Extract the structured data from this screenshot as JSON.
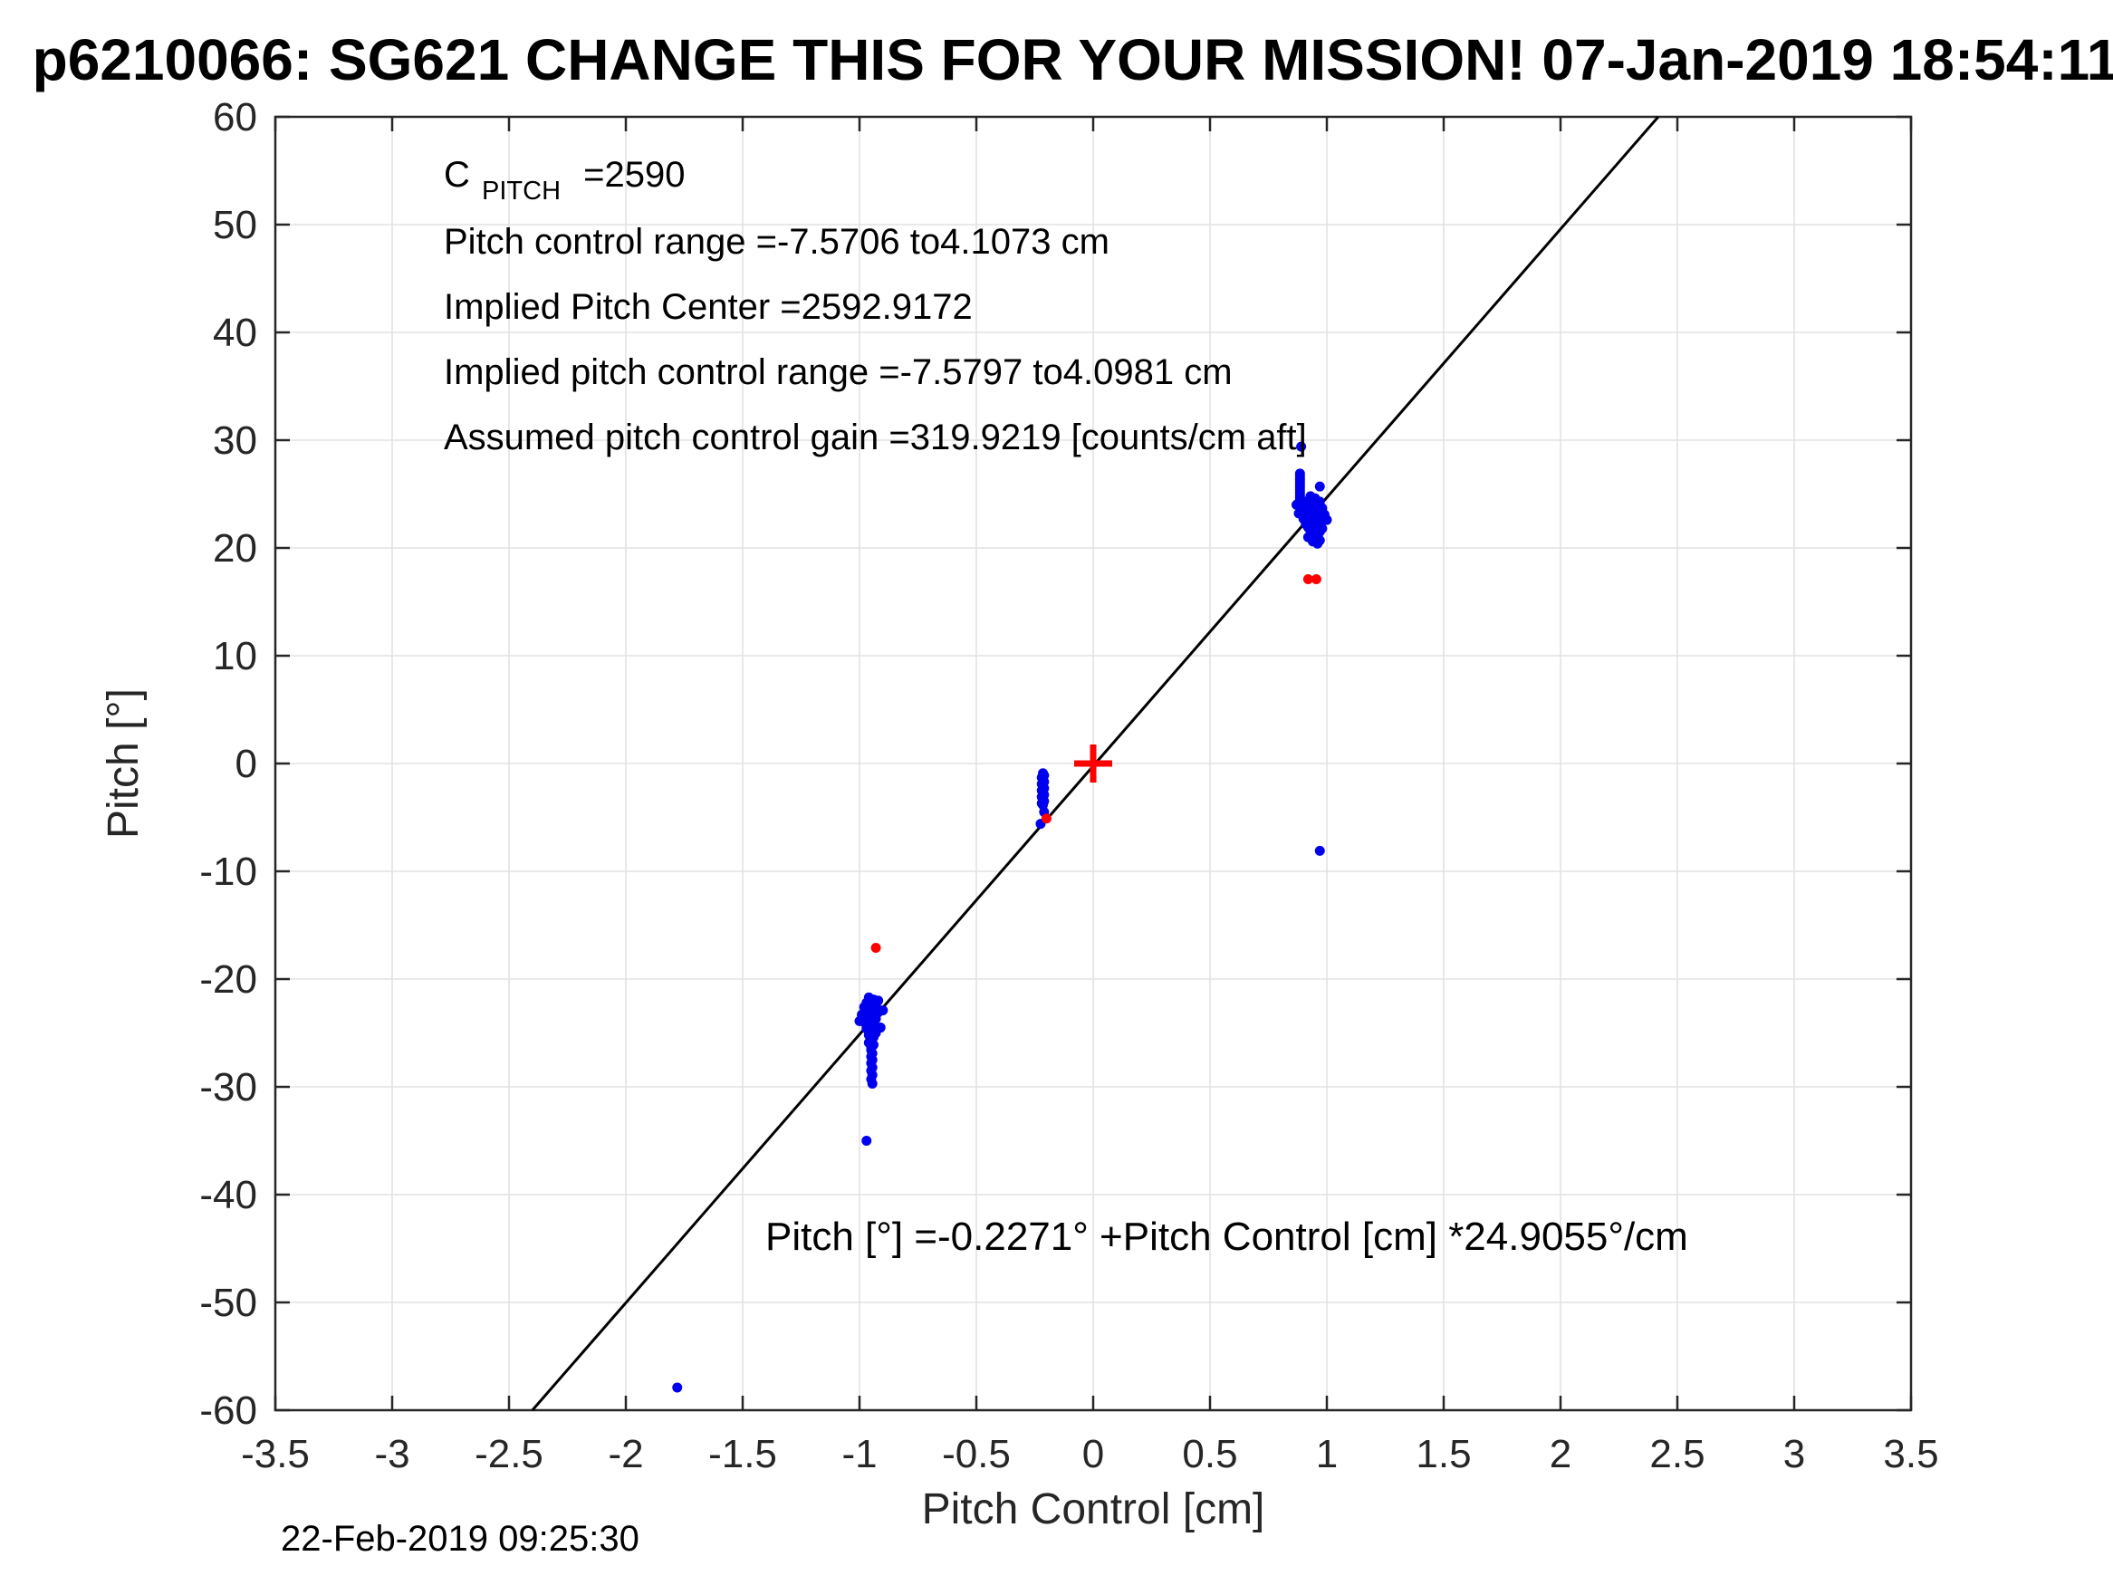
{
  "figure": {
    "title": "p6210066: SG621 CHANGE THIS FOR YOUR MISSION! 07-Jan-2019 18:54:11Z",
    "timestamp": "22-Feb-2019 09:25:30"
  },
  "chart_data": {
    "type": "scatter",
    "title": "p6210066: SG621 CHANGE THIS FOR YOUR MISSION! 07-Jan-2019 18:54:11Z",
    "xlabel": "Pitch Control [cm]",
    "ylabel": "Pitch [°]",
    "xlim": [
      -3.5,
      3.5
    ],
    "ylim": [
      -60,
      60
    ],
    "xticks": [
      -3.5,
      -3,
      -2.5,
      -2,
      -1.5,
      -1,
      -0.5,
      0,
      0.5,
      1,
      1.5,
      2,
      2.5,
      3,
      3.5
    ],
    "yticks": [
      -60,
      -50,
      -40,
      -30,
      -20,
      -10,
      0,
      10,
      20,
      30,
      40,
      50,
      60
    ],
    "grid": true,
    "legend": "none",
    "colors": {
      "samples": "#0000ee",
      "flagged": "#ff0000",
      "origin_marker": "#ff0000",
      "fit_line": "#000000",
      "grid": "#e2e2e2",
      "axis": "#262626"
    },
    "annotations": {
      "c_pitch": {
        "base": "C",
        "sub": "PITCH",
        "value": "=2590"
      },
      "lines": [
        "Pitch control range =-7.5706 to4.1073 cm",
        "Implied Pitch Center =2592.9172",
        "Implied pitch control range =-7.5797 to4.0981 cm",
        "Assumed pitch control gain =319.9219 [counts/cm aft]"
      ],
      "fit_equation": "Pitch [°] =-0.2271° +Pitch Control [cm] *24.9055°/cm"
    },
    "fit_line": {
      "slope": 24.9055,
      "intercept": -0.2271
    },
    "series": [
      {
        "name": "pitch-samples",
        "marker": "dot",
        "color": "#0000ee",
        "points": [
          [
            0.93,
            24.8
          ],
          [
            0.95,
            24.6
          ],
          [
            0.91,
            24.3
          ],
          [
            0.97,
            24.3
          ],
          [
            0.88,
            24.2
          ],
          [
            0.94,
            24.0
          ],
          [
            0.87,
            24.0
          ],
          [
            0.96,
            23.9
          ],
          [
            0.92,
            23.8
          ],
          [
            0.89,
            23.7
          ],
          [
            0.98,
            23.7
          ],
          [
            0.9,
            23.6
          ],
          [
            0.95,
            23.5
          ],
          [
            0.93,
            23.4
          ],
          [
            0.97,
            23.3
          ],
          [
            0.88,
            23.2
          ],
          [
            0.91,
            23.1
          ],
          [
            0.99,
            23.1
          ],
          [
            0.94,
            23.0
          ],
          [
            0.96,
            22.9
          ],
          [
            0.92,
            22.8
          ],
          [
            0.9,
            22.7
          ],
          [
            0.98,
            22.7
          ],
          [
            1.0,
            22.6
          ],
          [
            0.95,
            22.5
          ],
          [
            0.93,
            22.4
          ],
          [
            0.97,
            22.3
          ],
          [
            0.91,
            22.2
          ],
          [
            0.94,
            22.1
          ],
          [
            0.96,
            22.0
          ],
          [
            0.92,
            21.9
          ],
          [
            0.98,
            21.8
          ],
          [
            0.95,
            21.7
          ],
          [
            0.93,
            21.6
          ],
          [
            0.97,
            21.5
          ],
          [
            0.94,
            21.3
          ],
          [
            0.96,
            21.1
          ],
          [
            0.92,
            21.0
          ],
          [
            0.95,
            20.9
          ],
          [
            0.97,
            20.7
          ],
          [
            0.94,
            20.6
          ],
          [
            0.96,
            20.4
          ],
          [
            0.885,
            26.9
          ],
          [
            0.885,
            26.65
          ],
          [
            0.885,
            26.4
          ],
          [
            0.885,
            26.15
          ],
          [
            0.885,
            25.9
          ],
          [
            0.885,
            25.65
          ],
          [
            0.885,
            25.4
          ],
          [
            0.885,
            25.15
          ],
          [
            0.885,
            24.9
          ],
          [
            0.885,
            24.65
          ],
          [
            0.885,
            24.4
          ],
          [
            0.97,
            25.7
          ],
          [
            0.89,
            29.4
          ],
          [
            0.97,
            -8.1
          ],
          [
            -0.215,
            -0.9
          ],
          [
            -0.21,
            -1.1
          ],
          [
            -0.22,
            -1.3
          ],
          [
            -0.215,
            -1.5
          ],
          [
            -0.21,
            -1.7
          ],
          [
            -0.22,
            -1.9
          ],
          [
            -0.215,
            -2.1
          ],
          [
            -0.21,
            -2.3
          ],
          [
            -0.22,
            -2.5
          ],
          [
            -0.215,
            -2.7
          ],
          [
            -0.21,
            -2.9
          ],
          [
            -0.22,
            -3.1
          ],
          [
            -0.215,
            -3.3
          ],
          [
            -0.21,
            -3.5
          ],
          [
            -0.22,
            -3.7
          ],
          [
            -0.215,
            -3.85
          ],
          [
            -0.21,
            -4.5
          ],
          [
            -0.225,
            -5.6
          ],
          [
            -0.96,
            -21.7
          ],
          [
            -0.94,
            -21.9
          ],
          [
            -0.92,
            -22.0
          ],
          [
            -0.97,
            -22.2
          ],
          [
            -0.95,
            -22.3
          ],
          [
            -0.93,
            -22.5
          ],
          [
            -0.98,
            -22.6
          ],
          [
            -0.96,
            -22.8
          ],
          [
            -0.94,
            -23.0
          ],
          [
            -0.92,
            -23.1
          ],
          [
            -0.99,
            -23.3
          ],
          [
            -0.97,
            -23.4
          ],
          [
            -0.95,
            -23.6
          ],
          [
            -0.93,
            -23.7
          ],
          [
            -1.0,
            -23.9
          ],
          [
            -0.98,
            -24.0
          ],
          [
            -0.96,
            -24.2
          ],
          [
            -0.94,
            -24.3
          ],
          [
            -0.91,
            -24.5
          ],
          [
            -0.97,
            -24.6
          ],
          [
            -0.95,
            -24.8
          ],
          [
            -0.93,
            -25.0
          ],
          [
            -0.96,
            -25.2
          ],
          [
            -0.94,
            -25.4
          ],
          [
            -0.95,
            -25.6
          ],
          [
            -0.96,
            -25.9
          ],
          [
            -0.94,
            -26.1
          ],
          [
            -0.95,
            -26.3
          ],
          [
            -0.9,
            -22.9
          ],
          [
            -0.95,
            -26.6
          ],
          [
            -0.945,
            -26.9
          ],
          [
            -0.95,
            -27.2
          ],
          [
            -0.945,
            -27.5
          ],
          [
            -0.95,
            -27.8
          ],
          [
            -0.945,
            -28.2
          ],
          [
            -0.95,
            -28.5
          ],
          [
            -0.945,
            -28.9
          ],
          [
            -0.95,
            -29.3
          ],
          [
            -0.945,
            -29.7
          ],
          [
            -0.97,
            -35.0
          ],
          [
            -1.78,
            -57.9
          ]
        ]
      },
      {
        "name": "flagged-samples",
        "marker": "dot",
        "color": "#ff0000",
        "points": [
          [
            0.92,
            17.1
          ],
          [
            0.955,
            17.1
          ],
          [
            -0.2,
            -5.1
          ],
          [
            -0.93,
            -17.1
          ]
        ]
      },
      {
        "name": "origin-marker",
        "marker": "plus",
        "color": "#ff0000",
        "points": [
          [
            0,
            0
          ]
        ]
      }
    ]
  }
}
